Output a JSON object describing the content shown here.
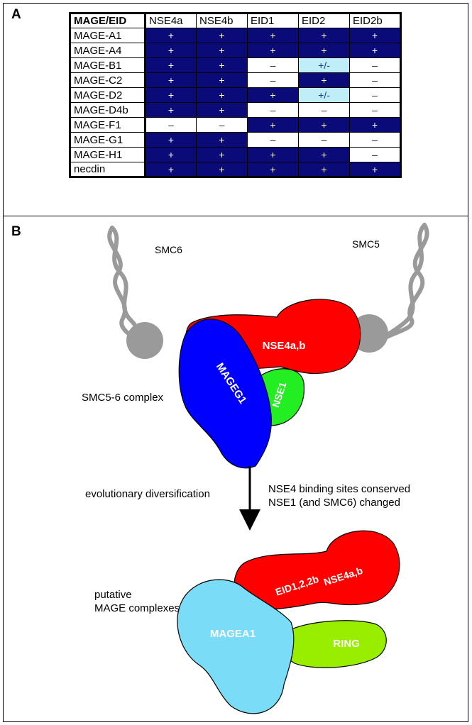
{
  "panel_a": {
    "label": "A",
    "header_corner": "MAGE/EID",
    "columns": [
      "NSE4a",
      "NSE4b",
      "EID1",
      "EID2",
      "EID2b"
    ],
    "rows": [
      {
        "name": "MAGE-A1",
        "cells": [
          "+",
          "+",
          "+",
          "+",
          "+"
        ]
      },
      {
        "name": "MAGE-A4",
        "cells": [
          "+",
          "+",
          "+",
          "+",
          "+"
        ]
      },
      {
        "name": "MAGE-B1",
        "cells": [
          "+",
          "+",
          "–",
          "+/-",
          "–"
        ]
      },
      {
        "name": "MAGE-C2",
        "cells": [
          "+",
          "+",
          "–",
          "+",
          "–"
        ]
      },
      {
        "name": "MAGE-D2",
        "cells": [
          "+",
          "+",
          "+",
          "+/-",
          "–"
        ]
      },
      {
        "name": "MAGE-D4b",
        "cells": [
          "+",
          "+",
          "–",
          "–",
          "–"
        ]
      },
      {
        "name": "MAGE-F1",
        "cells": [
          "–",
          "–",
          "+",
          "+",
          "+"
        ]
      },
      {
        "name": "MAGE-G1",
        "cells": [
          "+",
          "+",
          "–",
          "–",
          "–"
        ]
      },
      {
        "name": "MAGE-H1",
        "cells": [
          "+",
          "+",
          "+",
          "+",
          "–"
        ]
      },
      {
        "name": "necdin",
        "cells": [
          "+",
          "+",
          "+",
          "+",
          "+"
        ]
      }
    ],
    "colors": {
      "positive": "#0a0a78",
      "negative": "#ffffff",
      "partial": "#bfeef8"
    }
  },
  "panel_b": {
    "label": "B",
    "smc6_label": "SMC6",
    "smc5_label": "SMC5",
    "complex_label": "SMC5-6 complex",
    "nse4_label": "NSE4a,b",
    "mageg1_label": "MAGEG1",
    "nse1_label": "NSE1",
    "evolution_label": "evolutionary diversification",
    "note_line1": "NSE4 binding sites conserved",
    "note_line2": "NSE1 (and SMC6)  changed",
    "putative_line1": "putative",
    "putative_line2": "MAGE complexes",
    "eid_label": "EID1,2,2b",
    "nse4_label_lower": "NSE4a,b",
    "magea1_label": "MAGEA1",
    "ring_label": "RING",
    "colors": {
      "red": "#ff0000",
      "blue": "#0000ff",
      "green": "#22ee22",
      "lightblue": "#7adcf6",
      "lime": "#99ee00",
      "gray": "#9a9a9a"
    }
  }
}
